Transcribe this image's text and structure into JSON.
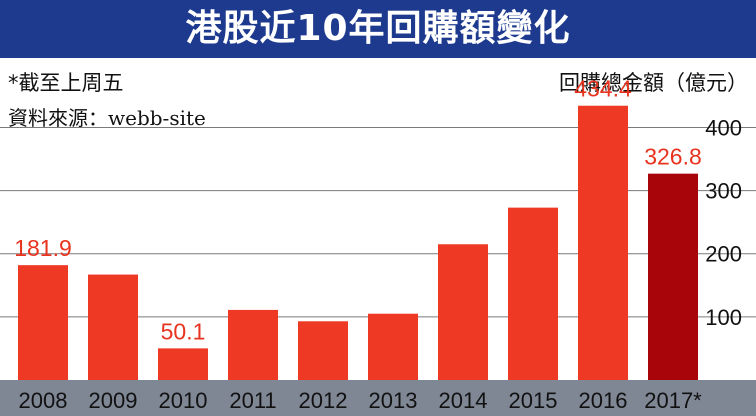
{
  "title": "港股近10年回購額變化",
  "note": "*截至上周五",
  "source": "資料來源：webb-site",
  "chart_data": {
    "type": "bar",
    "title": "港股近10年回購額變化",
    "ylabel": "回購總金額（億元）",
    "xlabel": "",
    "categories": [
      "2008",
      "2009",
      "2010",
      "2011",
      "2012",
      "2013",
      "2014",
      "2015",
      "2016",
      "2017*"
    ],
    "values": [
      181.9,
      167,
      50.1,
      111,
      93,
      105,
      215,
      273,
      434.4,
      326.8
    ],
    "data_labels": [
      {
        "index": 0,
        "text": "181.9"
      },
      {
        "index": 2,
        "text": "50.1"
      },
      {
        "index": 8,
        "text": "434.4"
      },
      {
        "index": 9,
        "text": "326.8"
      }
    ],
    "yticks": [
      100,
      200,
      300,
      400
    ],
    "ylim": [
      0,
      450
    ],
    "grid": true,
    "colors": {
      "bar": "#ee3a24",
      "highlight_bar": "#a8050a",
      "label": "#e8331e",
      "axis_band": "#7f8795",
      "title_bg": "#1d3a8f",
      "grid": "#7a7a7a"
    },
    "highlight_index": 9
  }
}
